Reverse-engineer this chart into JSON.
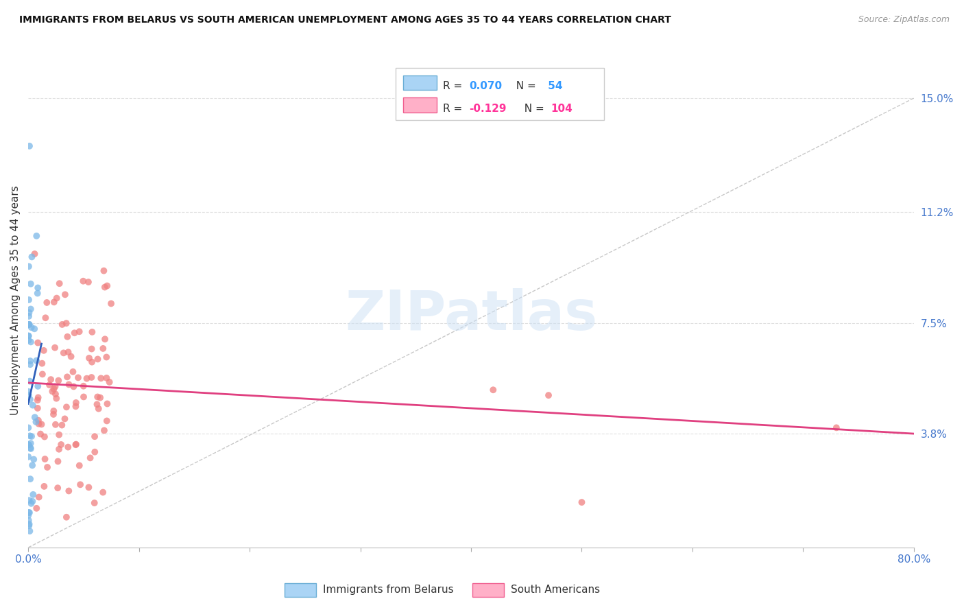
{
  "title": "IMMIGRANTS FROM BELARUS VS SOUTH AMERICAN UNEMPLOYMENT AMONG AGES 35 TO 44 YEARS CORRELATION CHART",
  "source": "Source: ZipAtlas.com",
  "ylabel": "Unemployment Among Ages 35 to 44 years",
  "xlim": [
    0.0,
    0.8
  ],
  "ylim": [
    0.0,
    0.165
  ],
  "ytick_labels_right": [
    "15.0%",
    "11.2%",
    "7.5%",
    "3.8%"
  ],
  "ytick_values_right": [
    0.15,
    0.112,
    0.075,
    0.038
  ],
  "belarus_color": "#7bb8e8",
  "south_american_color": "#f08080",
  "belarus_trendline_color": "#3060bb",
  "south_trendline_color": "#e04080",
  "dashed_color": "#bbbbbb",
  "grid_color": "#e0e0e0",
  "background_color": "#ffffff",
  "watermark": "ZIPatlas",
  "legend_R1": "0.070",
  "legend_N1": "54",
  "legend_R2": "-0.129",
  "legend_N2": "104",
  "bottom_label1": "Immigrants from Belarus",
  "bottom_label2": "South Americans",
  "dashed_line_x": [
    0.0,
    0.8
  ],
  "dashed_line_y": [
    0.0,
    0.15
  ],
  "belarus_trendline_x": [
    0.0,
    0.012
  ],
  "belarus_trendline_y": [
    0.048,
    0.068
  ],
  "south_trendline_x": [
    0.0,
    0.8
  ],
  "south_trendline_y": [
    0.055,
    0.038
  ]
}
